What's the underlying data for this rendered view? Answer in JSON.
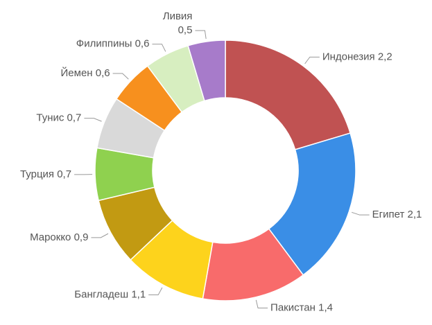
{
  "chart_data": {
    "type": "donut",
    "categories": [
      "Индонезия",
      "Египет",
      "Пакистан",
      "Бангладеш",
      "Марокко",
      "Турция",
      "Тунис",
      "Йемен",
      "Филиппины",
      "Ливия"
    ],
    "values": [
      2.2,
      2.1,
      1.4,
      1.1,
      0.9,
      0.7,
      0.7,
      0.6,
      0.6,
      0.5
    ],
    "value_labels": [
      "2,2",
      "2,1",
      "1,4",
      "1,1",
      "0,9",
      "0,7",
      "0,7",
      "0,6",
      "0,6",
      "0,5"
    ],
    "colors": [
      "#c05252",
      "#3a8ee6",
      "#f86b6b",
      "#fdd31c",
      "#c29a12",
      "#8fd14f",
      "#d9d9d9",
      "#f7901e",
      "#d7eec0",
      "#a77bca"
    ]
  }
}
